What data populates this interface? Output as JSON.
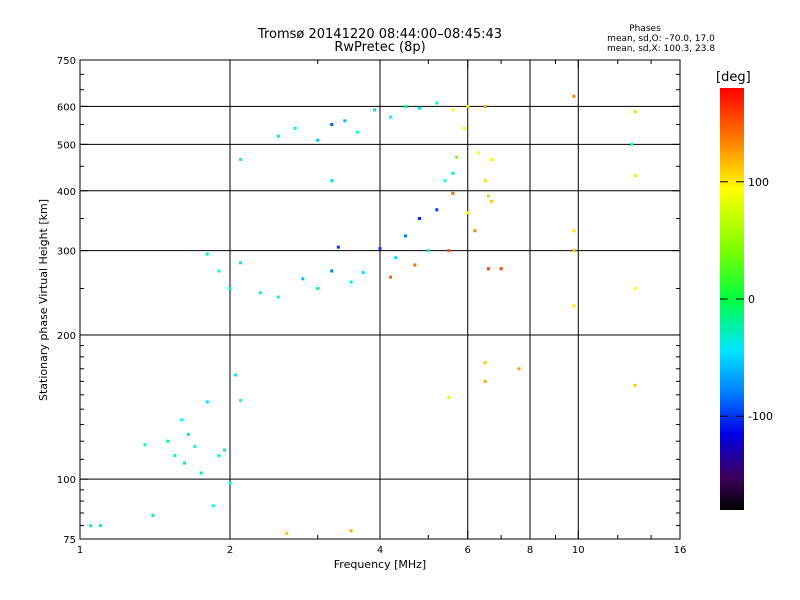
{
  "header": {
    "title_line1": "Tromsø 20141220 08:44:00–08:45:43",
    "title_line2": "RwPretec (8p)",
    "stats_heading": "Phases",
    "stats_line_0": "mean, sd,O: –70.0, 17.0",
    "stats_line_x": "mean, sd,X: 100.3, 23.8"
  },
  "chart_data": {
    "type": "scatter",
    "xlabel": "Frequency [MHz]",
    "ylabel": "Stationary phase Virtual Height [km]",
    "x_scale": "log",
    "y_scale": "log",
    "xlim": [
      1,
      16
    ],
    "ylim": [
      75,
      750
    ],
    "x_ticks": [
      1,
      2,
      4,
      6,
      8,
      10,
      16
    ],
    "y_ticks": [
      75,
      100,
      200,
      300,
      400,
      500,
      600,
      750
    ],
    "x_grid": [
      2,
      4,
      6,
      8,
      10
    ],
    "y_grid": [
      100,
      200,
      300,
      400,
      500,
      600
    ],
    "grid": true,
    "colorbar": {
      "label": "[deg]",
      "range": [
        -180,
        180
      ],
      "ticks": [
        100,
        0,
        -100
      ],
      "colormap": "rainbow"
    },
    "series": [
      {
        "points": [
          [
            1.05,
            80,
            -20
          ],
          [
            1.1,
            80,
            -20
          ],
          [
            1.35,
            118,
            -40
          ],
          [
            1.4,
            84,
            -20
          ],
          [
            1.5,
            120,
            -20
          ],
          [
            1.55,
            112,
            -30
          ],
          [
            1.6,
            133,
            -50
          ],
          [
            1.62,
            108,
            -60
          ],
          [
            1.65,
            124,
            -20
          ],
          [
            1.7,
            117,
            -40
          ],
          [
            1.75,
            103,
            -20
          ],
          [
            1.8,
            145,
            -60
          ],
          [
            1.85,
            88,
            -50
          ],
          [
            1.9,
            112,
            -30
          ],
          [
            1.95,
            115,
            -20
          ],
          [
            2.05,
            165,
            -60
          ],
          [
            2.1,
            146,
            -40
          ],
          [
            2.0,
            98,
            -40
          ],
          [
            1.8,
            295,
            -20
          ],
          [
            1.9,
            272,
            -40
          ],
          [
            2.0,
            250,
            -20
          ],
          [
            2.1,
            283,
            -60
          ],
          [
            2.3,
            245,
            -20
          ],
          [
            2.5,
            240,
            -40
          ],
          [
            2.8,
            262,
            -70
          ],
          [
            3.0,
            250,
            -20
          ],
          [
            3.2,
            272,
            -90
          ],
          [
            3.3,
            305,
            -110
          ],
          [
            3.5,
            258,
            -40
          ],
          [
            3.7,
            270,
            -60
          ],
          [
            4.0,
            303,
            -110
          ],
          [
            4.2,
            264,
            150
          ],
          [
            4.3,
            290,
            -60
          ],
          [
            4.5,
            322,
            -90
          ],
          [
            4.7,
            280,
            150
          ],
          [
            4.8,
            350,
            -120
          ],
          [
            5.0,
            300,
            -30
          ],
          [
            5.2,
            365,
            -110
          ],
          [
            5.4,
            420,
            -50
          ],
          [
            5.5,
            300,
            155
          ],
          [
            5.6,
            395,
            150
          ],
          [
            5.7,
            470,
            60
          ],
          [
            5.9,
            540,
            100
          ],
          [
            6.0,
            360,
            100
          ],
          [
            6.0,
            600,
            110
          ],
          [
            6.2,
            330,
            140
          ],
          [
            6.3,
            480,
            100
          ],
          [
            6.5,
            420,
            110
          ],
          [
            6.6,
            390,
            70
          ],
          [
            6.7,
            380,
            120
          ],
          [
            6.5,
            600,
            130
          ],
          [
            6.7,
            465,
            100
          ],
          [
            6.6,
            275,
            160
          ],
          [
            7.0,
            275,
            160
          ],
          [
            2.5,
            520,
            -20
          ],
          [
            2.7,
            540,
            -40
          ],
          [
            3.0,
            510,
            -70
          ],
          [
            3.2,
            550,
            -100
          ],
          [
            3.4,
            560,
            -70
          ],
          [
            3.6,
            530,
            -40
          ],
          [
            3.9,
            590,
            -60
          ],
          [
            4.2,
            570,
            -40
          ],
          [
            4.5,
            600,
            -20
          ],
          [
            4.8,
            595,
            -60
          ],
          [
            5.2,
            610,
            -40
          ],
          [
            5.6,
            590,
            100
          ],
          [
            2.1,
            465,
            -30
          ],
          [
            5.6,
            435,
            -20
          ],
          [
            3.2,
            420,
            -60
          ],
          [
            6.5,
            160,
            130
          ],
          [
            6.5,
            175,
            120
          ],
          [
            7.6,
            170,
            130
          ],
          [
            9.8,
            630,
            140
          ],
          [
            9.8,
            300,
            120
          ],
          [
            9.8,
            230,
            110
          ],
          [
            9.8,
            330,
            110
          ],
          [
            13.0,
            585,
            80
          ],
          [
            13.0,
            430,
            90
          ],
          [
            13.0,
            250,
            100
          ],
          [
            13.0,
            157,
            120
          ],
          [
            12.8,
            500,
            -30
          ],
          [
            5.5,
            148,
            110
          ],
          [
            2.6,
            77,
            120
          ],
          [
            3.5,
            78,
            130
          ]
        ]
      }
    ]
  }
}
